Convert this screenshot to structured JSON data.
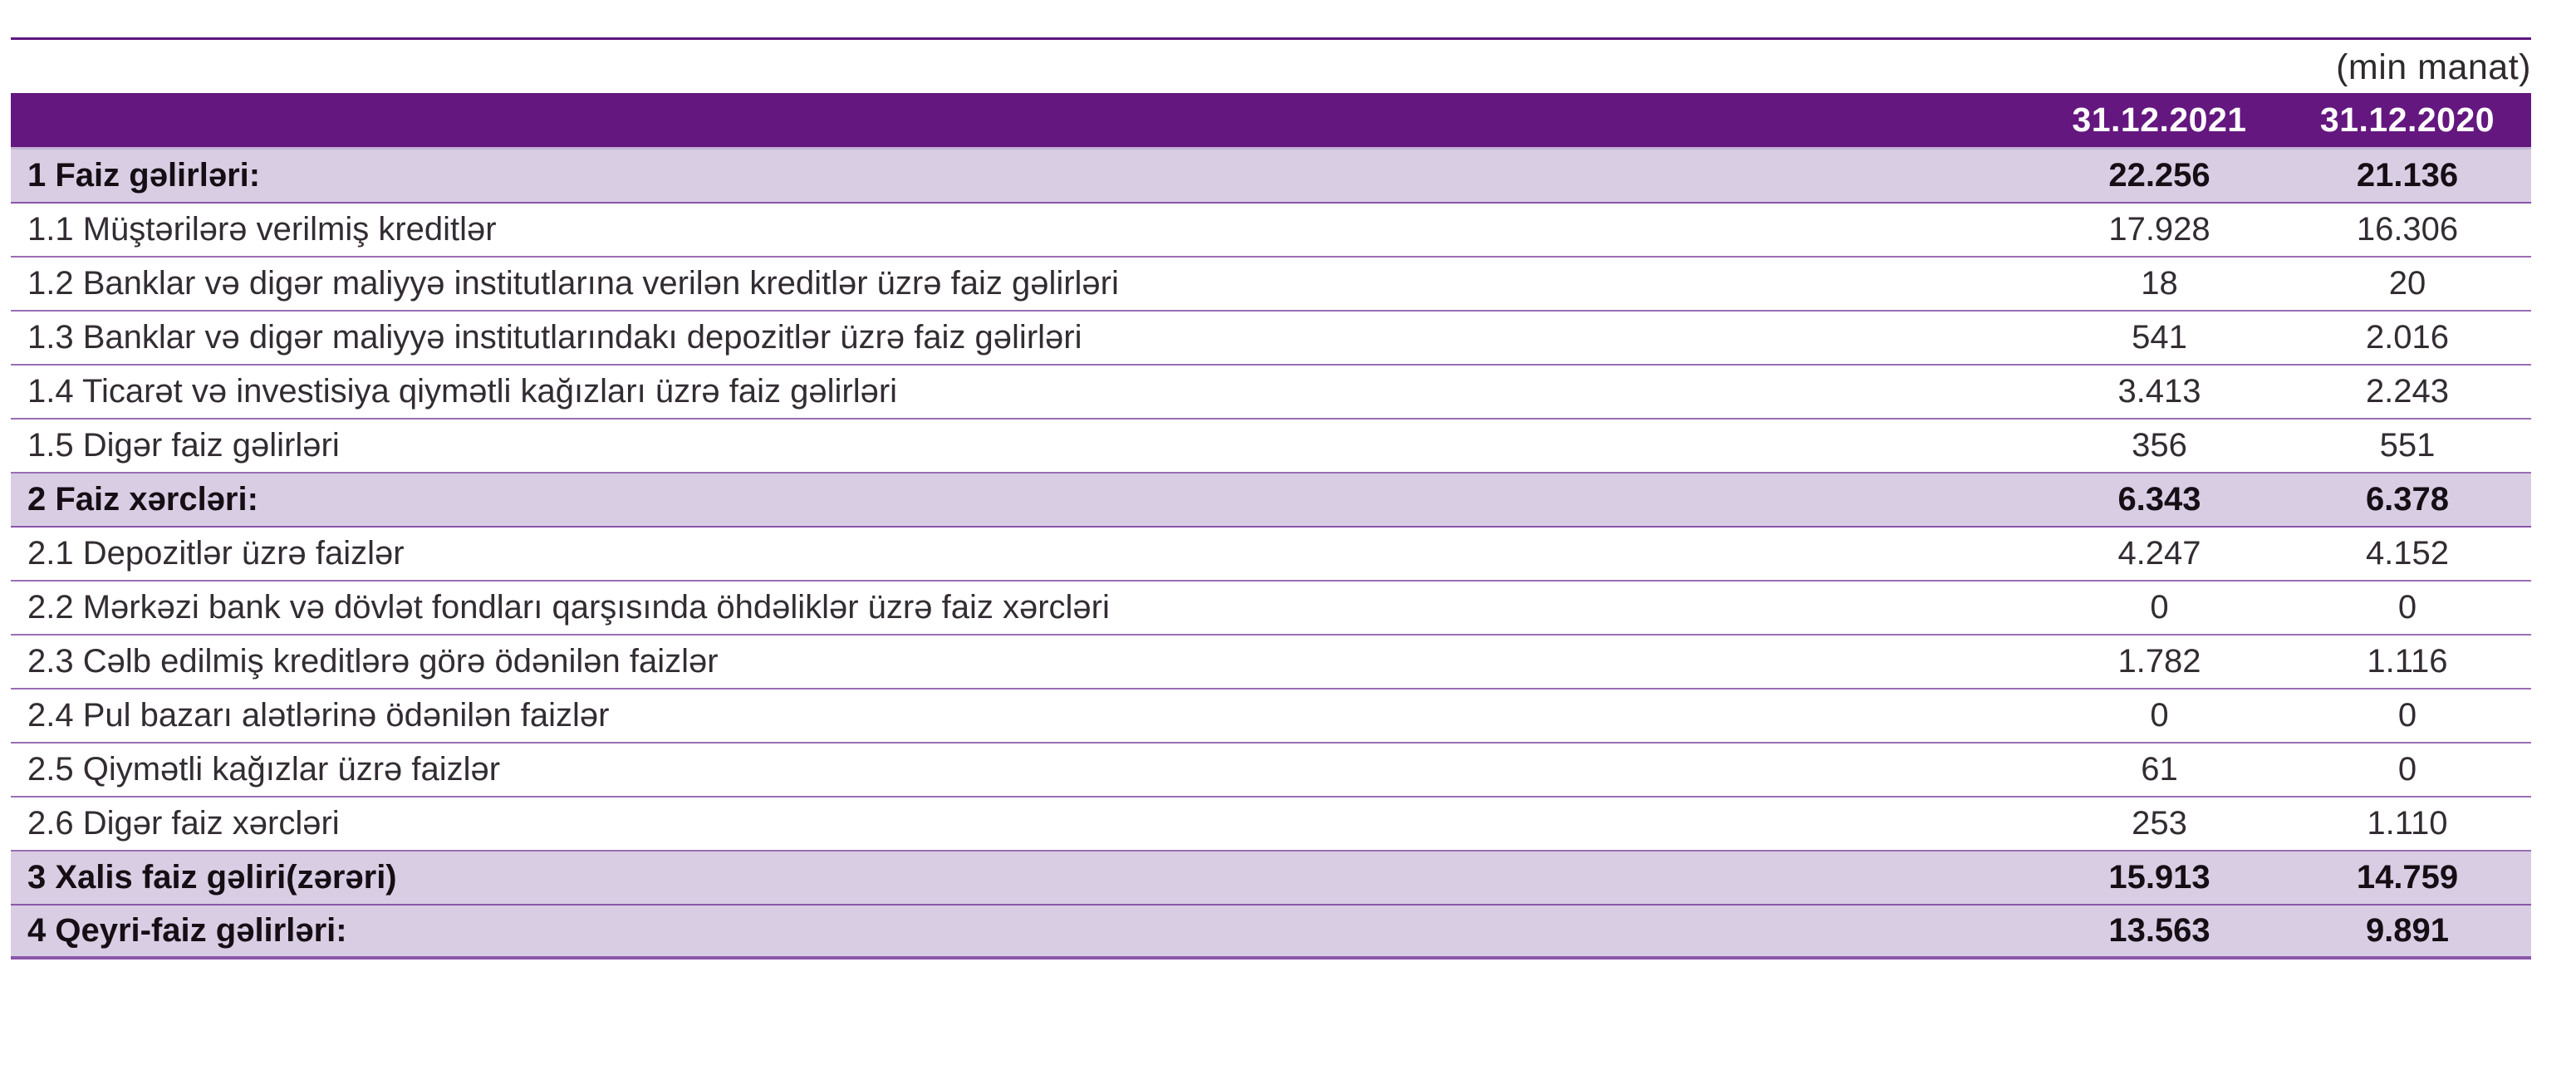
{
  "unit_note": "(min manat)",
  "table": {
    "columns": [
      "31.12.2021",
      "31.12.2020"
    ],
    "rows": [
      {
        "label": "1 Faiz gəlirləri:",
        "v2021": "22.256",
        "v2020": "21.136",
        "emphasis": true
      },
      {
        "label": "1.1 Müştərilərə verilmiş kreditlər",
        "v2021": "17.928",
        "v2020": "16.306",
        "emphasis": false
      },
      {
        "label": "1.2 Banklar və digər maliyyə institutlarına verilən kreditlər üzrə faiz gəlirləri",
        "v2021": "18",
        "v2020": "20",
        "emphasis": false
      },
      {
        "label": "1.3 Banklar və digər maliyyə institutlarındakı depozitlər üzrə faiz gəlirləri",
        "v2021": "541",
        "v2020": "2.016",
        "emphasis": false
      },
      {
        "label": "1.4 Ticarət və investisiya qiymətli kağızları üzrə faiz gəlirləri",
        "v2021": "3.413",
        "v2020": "2.243",
        "emphasis": false
      },
      {
        "label": "1.5 Digər faiz gəlirləri",
        "v2021": "356",
        "v2020": "551",
        "emphasis": false
      },
      {
        "label": "2 Faiz xərcləri:",
        "v2021": "6.343",
        "v2020": "6.378",
        "emphasis": true
      },
      {
        "label": "2.1 Depozitlər üzrə faizlər",
        "v2021": "4.247",
        "v2020": "4.152",
        "emphasis": false
      },
      {
        "label": "2.2 Mərkəzi bank və dövlət fondları qarşısında öhdəliklər üzrə faiz xərcləri",
        "v2021": "0",
        "v2020": "0",
        "emphasis": false
      },
      {
        "label": "2.3 Cəlb edilmiş kreditlərə görə ödənilən faizlər",
        "v2021": "1.782",
        "v2020": "1.116",
        "emphasis": false
      },
      {
        "label": "2.4 Pul bazarı alətlərinə ödənilən faizlər",
        "v2021": "0",
        "v2020": "0",
        "emphasis": false
      },
      {
        "label": "2.5 Qiymətli kağızlar üzrə faizlər",
        "v2021": "61",
        "v2020": "0",
        "emphasis": false
      },
      {
        "label": "2.6 Digər faiz xərcləri",
        "v2021": "253",
        "v2020": "1.110",
        "emphasis": false
      },
      {
        "label": "3 Xalis faiz gəliri(zərəri)",
        "v2021": "15.913",
        "v2020": "14.759",
        "emphasis": true
      },
      {
        "label": "4 Qeyri-faiz gəlirləri:",
        "v2021": "13.563",
        "v2020": "9.891",
        "emphasis": true
      }
    ]
  },
  "colors": {
    "header-bg": "#64177f",
    "band-bg": "#d9cde4",
    "sep": "#9a6eb4",
    "sep-strong": "#8a57ab",
    "top-rule": "#5f1580",
    "header-underline": "#c2b2d4",
    "bottom-rule": "#8a57ab",
    "text": "#332d33",
    "text-strong": "#150f15"
  }
}
